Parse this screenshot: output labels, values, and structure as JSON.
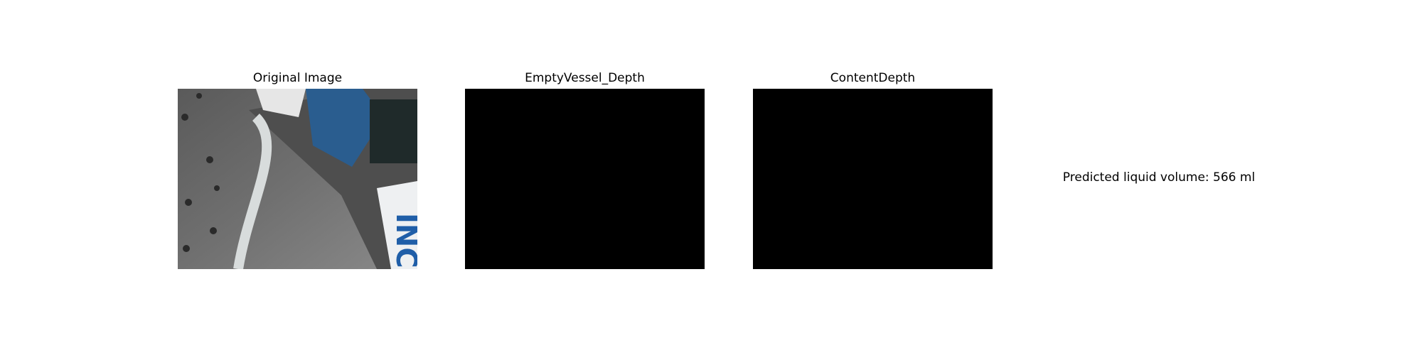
{
  "panels": [
    {
      "title": "Original Image",
      "image_text": "INC"
    },
    {
      "title": "EmptyVessel_Depth"
    },
    {
      "title": "ContentDepth"
    }
  ],
  "prediction": "Predicted liquid volume: 566 ml"
}
